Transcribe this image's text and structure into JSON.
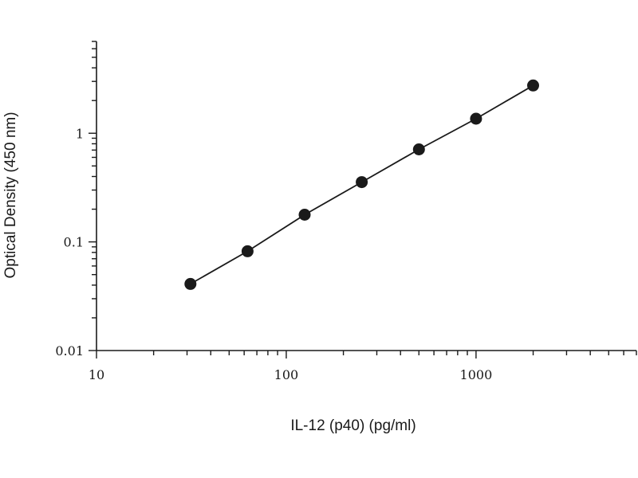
{
  "chart_data": {
    "type": "scatter",
    "title": "",
    "xlabel": "IL-12 (p40) (pg/ml)",
    "ylabel": "Optical Density (450 nm)",
    "x_scale": "log",
    "y_scale": "log",
    "xlim": [
      10,
      7000
    ],
    "ylim": [
      0.01,
      7
    ],
    "x_ticks": [
      {
        "value": 10,
        "label": "10"
      },
      {
        "value": 100,
        "label": "100"
      },
      {
        "value": 1000,
        "label": "1000"
      }
    ],
    "y_ticks": [
      {
        "value": 0.01,
        "label": "0.01"
      },
      {
        "value": 0.1,
        "label": "0.1"
      },
      {
        "value": 1,
        "label": "1"
      }
    ],
    "grid": false,
    "legend": "none",
    "series": [
      {
        "x": [
          31.25,
          62.5,
          125,
          250,
          500,
          1000,
          2000
        ],
        "y": [
          0.041,
          0.082,
          0.178,
          0.355,
          0.71,
          1.36,
          2.75
        ],
        "connect": true,
        "marker": "filled-circle",
        "color": "#1a1a1a"
      }
    ]
  }
}
